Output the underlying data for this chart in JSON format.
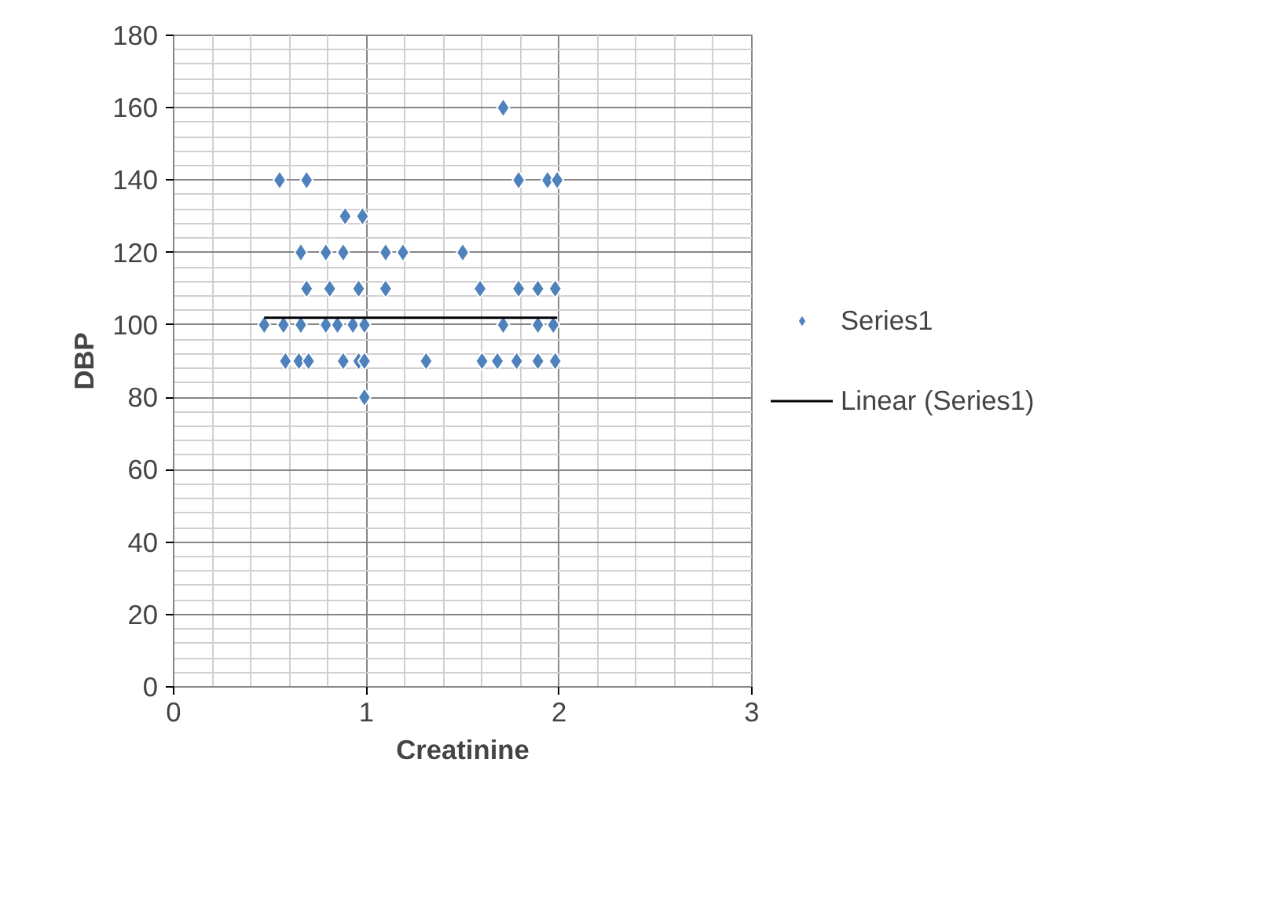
{
  "chart_data": {
    "type": "scatter",
    "xlabel": "Creatinine",
    "ylabel": "DBP",
    "xlim": [
      0,
      3
    ],
    "xticks": [
      0,
      1,
      2,
      3
    ],
    "ylim": [
      0,
      180
    ],
    "yticks": [
      0,
      20,
      40,
      60,
      80,
      100,
      120,
      140,
      160,
      180
    ],
    "grid": true,
    "legend": "right",
    "series": [
      {
        "name": "Series1",
        "color": "#4f81bd",
        "marker": "diamond",
        "x": [
          1.71,
          0.55,
          0.69,
          1.79,
          1.94,
          1.99,
          0.89,
          0.98,
          0.66,
          0.79,
          0.88,
          1.1,
          1.19,
          1.5,
          0.69,
          0.81,
          0.96,
          1.1,
          1.59,
          1.79,
          1.89,
          1.98,
          0.47,
          0.57,
          0.66,
          0.79,
          0.85,
          0.93,
          0.99,
          1.71,
          1.89,
          1.97,
          0.58,
          0.65,
          0.7,
          0.88,
          0.96,
          0.99,
          1.31,
          1.6,
          1.68,
          1.78,
          1.89,
          1.98,
          0.99
        ],
        "values": [
          160,
          140,
          140,
          140,
          140,
          140,
          130,
          130,
          120,
          120,
          120,
          120,
          120,
          120,
          110,
          110,
          110,
          110,
          110,
          110,
          110,
          110,
          100,
          100,
          100,
          100,
          100,
          100,
          100,
          100,
          100,
          100,
          90,
          90,
          90,
          90,
          90,
          90,
          90,
          90,
          90,
          90,
          90,
          90,
          80
        ]
      },
      {
        "name": "Linear (Series1)",
        "color": "#000000",
        "type": "line",
        "marker": "none",
        "x": [
          0.47,
          1.99
        ],
        "values": [
          102,
          102
        ]
      }
    ]
  }
}
